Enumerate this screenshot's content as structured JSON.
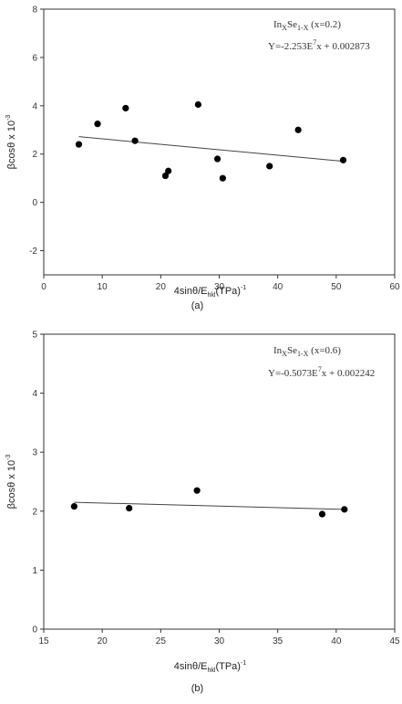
{
  "chart_data": [
    {
      "type": "scatter",
      "panel_caption": "(a)",
      "ylabel": "βcosθ x 10⁻³",
      "xlabel": "4sinθ/E_hkl(TPa)⁻¹",
      "xlabel_parts": {
        "main": "4sinθ/E",
        "sub": "hkl",
        "unit": "(TPa)",
        "sup": "-1"
      },
      "ylabel_parts": {
        "main": "βcosθ x 10",
        "sup": "-3"
      },
      "annotation_lines": [
        {
          "main": "In",
          "sub1": "X",
          "mid": "Se",
          "sub2": "1-X",
          "tail": " (x=0.2)"
        },
        {
          "main": "Y=-2.253E",
          "sup": "7",
          "tail": "x + 0.002873"
        }
      ],
      "annotation_text": [
        "InXSe1-X (x=0.2)",
        "Y=-2.253E7x + 0.002873"
      ],
      "xlim": [
        0,
        60
      ],
      "ylim": [
        -3,
        8
      ],
      "xticks": [
        "0",
        "10",
        "20",
        "30",
        "40",
        "50",
        "60"
      ],
      "yticks": [
        "-2",
        "0",
        "2",
        "4",
        "6",
        "8"
      ],
      "points": [
        [
          6.0,
          2.4
        ],
        [
          9.2,
          3.25
        ],
        [
          14.0,
          3.9
        ],
        [
          15.6,
          2.55
        ],
        [
          20.8,
          1.1
        ],
        [
          21.3,
          1.3
        ],
        [
          26.4,
          4.05
        ],
        [
          29.7,
          1.8
        ],
        [
          30.6,
          1.0
        ],
        [
          38.6,
          1.5
        ],
        [
          43.5,
          3.0
        ],
        [
          51.2,
          1.75
        ]
      ],
      "fit_line": {
        "x": [
          6.0,
          51.2
        ],
        "y": [
          2.72,
          1.7
        ]
      },
      "colors": {
        "marker": "#000000",
        "line": "#444444",
        "frame": "#333333"
      }
    },
    {
      "type": "scatter",
      "panel_caption": "(b)",
      "ylabel": "βcosθ x 10⁻³",
      "xlabel": "4sinθ/E_hkl(TPa)⁻¹",
      "xlabel_parts": {
        "main": "4sinθ/E",
        "sub": "hkl",
        "unit": "(TPa)",
        "sup": "-1"
      },
      "ylabel_parts": {
        "main": "βcosθ x 10",
        "sup": "-3"
      },
      "annotation_lines": [
        {
          "main": "In",
          "sub1": "X",
          "mid": "Se",
          "sub2": "1-X",
          "tail": " (x=0.6)"
        },
        {
          "main": "Y=-0.5073E",
          "sup": "7",
          "tail": "x + 0.002242"
        }
      ],
      "annotation_text": [
        "InXSe1-X (x=0.6)",
        "Y=-0.5073E7x + 0.002242"
      ],
      "xlim": [
        15,
        45
      ],
      "ylim": [
        0,
        5
      ],
      "xticks": [
        "15",
        "20",
        "25",
        "30",
        "35",
        "40",
        "45"
      ],
      "yticks": [
        "0",
        "1",
        "2",
        "3",
        "4",
        "5"
      ],
      "points": [
        [
          17.6,
          2.08
        ],
        [
          22.3,
          2.05
        ],
        [
          28.1,
          2.35
        ],
        [
          38.8,
          1.95
        ],
        [
          40.7,
          2.03
        ]
      ],
      "fit_line": {
        "x": [
          17.6,
          40.7
        ],
        "y": [
          2.15,
          2.03
        ]
      },
      "colors": {
        "marker": "#000000",
        "line": "#444444",
        "frame": "#333333"
      }
    }
  ]
}
